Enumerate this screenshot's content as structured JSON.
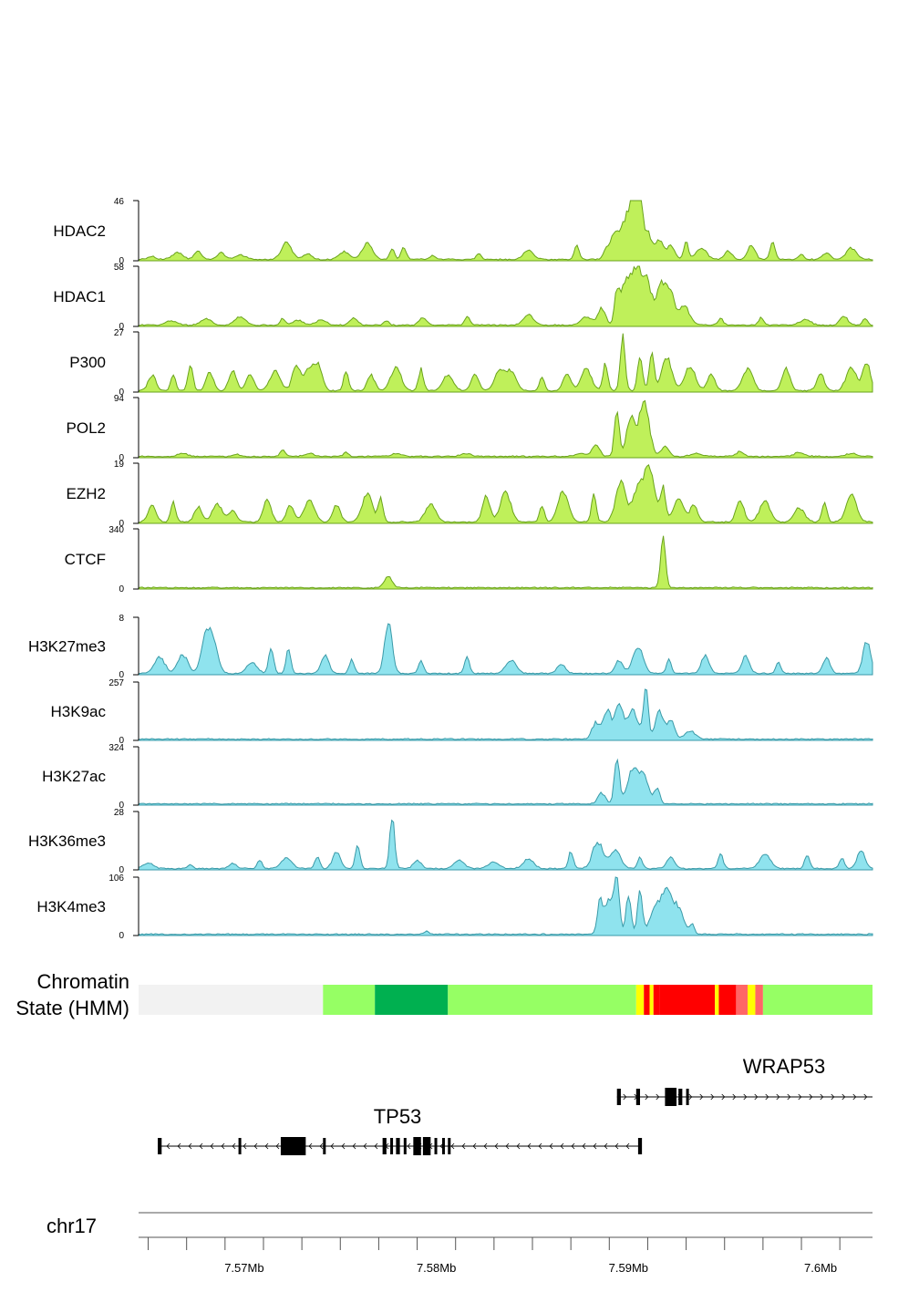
{
  "chart_data": {
    "type": "area",
    "genome": "chr17",
    "x_range": [
      7.5645,
      7.6027
    ],
    "x_unit": "Mb",
    "x_ticks": [
      {
        "value": 7.57,
        "label": "7.57Mb"
      },
      {
        "value": 7.58,
        "label": "7.58Mb"
      },
      {
        "value": 7.59,
        "label": "7.59Mb"
      },
      {
        "value": 7.6,
        "label": "7.6Mb"
      }
    ],
    "colors": {
      "protein": "#bff05a",
      "protein_line": "#6aa31c",
      "histone": "#8fe3ee",
      "histone_line": "#3a9aa8"
    },
    "tracks": [
      {
        "name": "HDAC2",
        "group": "protein",
        "ymax": "46",
        "ymin": "0",
        "peaks": [
          [
            7.5652,
            0.05
          ],
          [
            7.5665,
            0.12
          ],
          [
            7.5676,
            0.15
          ],
          [
            7.5688,
            0.12
          ],
          [
            7.5698,
            0.08
          ],
          [
            7.5722,
            0.3
          ],
          [
            7.5733,
            0.1
          ],
          [
            7.5752,
            0.14
          ],
          [
            7.5764,
            0.28
          ],
          [
            7.5777,
            0.2
          ],
          [
            7.5783,
            0.22
          ],
          [
            7.5798,
            0.08
          ],
          [
            7.5822,
            0.1
          ],
          [
            7.5848,
            0.16
          ],
          [
            7.5873,
            0.25
          ],
          [
            7.5888,
            0.12
          ],
          [
            7.5893,
            0.5
          ],
          [
            7.5898,
            0.42
          ],
          [
            7.5901,
            0.65
          ],
          [
            7.5904,
            0.7
          ],
          [
            7.5906,
            0.95
          ],
          [
            7.591,
            0.5
          ],
          [
            7.5916,
            0.35
          ],
          [
            7.5922,
            0.25
          ],
          [
            7.593,
            0.3
          ],
          [
            7.5938,
            0.2
          ],
          [
            7.5952,
            0.15
          ],
          [
            7.5964,
            0.25
          ],
          [
            7.5975,
            0.32
          ],
          [
            7.599,
            0.1
          ],
          [
            7.6003,
            0.12
          ],
          [
            7.6016,
            0.2
          ]
        ]
      },
      {
        "name": "HDAC1",
        "group": "protein",
        "ymax": "58",
        "ymin": "0",
        "peaks": [
          [
            7.5662,
            0.08
          ],
          [
            7.568,
            0.12
          ],
          [
            7.5698,
            0.15
          ],
          [
            7.572,
            0.12
          ],
          [
            7.5728,
            0.08
          ],
          [
            7.574,
            0.1
          ],
          [
            7.5757,
            0.13
          ],
          [
            7.5774,
            0.08
          ],
          [
            7.5793,
            0.12
          ],
          [
            7.5816,
            0.16
          ],
          [
            7.5848,
            0.18
          ],
          [
            7.5878,
            0.15
          ],
          [
            7.5886,
            0.3
          ],
          [
            7.5894,
            0.55
          ],
          [
            7.5899,
            0.8
          ],
          [
            7.5905,
            0.95
          ],
          [
            7.591,
            0.65
          ],
          [
            7.5917,
            0.75
          ],
          [
            7.5922,
            0.5
          ],
          [
            7.5929,
            0.35
          ],
          [
            7.5948,
            0.12
          ],
          [
            7.5969,
            0.14
          ],
          [
            7.5992,
            0.1
          ],
          [
            7.6012,
            0.16
          ],
          [
            7.6023,
            0.12
          ]
        ]
      },
      {
        "name": "P300",
        "group": "protein",
        "ymax": "27",
        "ymin": "0",
        "peaks": [
          [
            7.5652,
            0.28
          ],
          [
            7.5663,
            0.3
          ],
          [
            7.5672,
            0.45
          ],
          [
            7.5682,
            0.32
          ],
          [
            7.5694,
            0.35
          ],
          [
            7.5703,
            0.3
          ],
          [
            7.5716,
            0.35
          ],
          [
            7.5727,
            0.45
          ],
          [
            7.5734,
            0.42
          ],
          [
            7.5739,
            0.38
          ],
          [
            7.5753,
            0.35
          ],
          [
            7.5766,
            0.28
          ],
          [
            7.5779,
            0.42
          ],
          [
            7.5792,
            0.38
          ],
          [
            7.5806,
            0.28
          ],
          [
            7.582,
            0.3
          ],
          [
            7.5833,
            0.35
          ],
          [
            7.5839,
            0.32
          ],
          [
            7.5855,
            0.25
          ],
          [
            7.5868,
            0.3
          ],
          [
            7.5878,
            0.38
          ],
          [
            7.5888,
            0.48
          ],
          [
            7.5897,
            0.95
          ],
          [
            7.5906,
            0.6
          ],
          [
            7.5912,
            0.7
          ],
          [
            7.592,
            0.6
          ],
          [
            7.5932,
            0.45
          ],
          [
            7.5943,
            0.3
          ],
          [
            7.5962,
            0.38
          ],
          [
            7.5982,
            0.42
          ],
          [
            7.6,
            0.3
          ],
          [
            7.6016,
            0.42
          ],
          [
            7.6024,
            0.5
          ]
        ]
      },
      {
        "name": "POL2",
        "group": "protein",
        "ymax": "94",
        "ymin": "0",
        "peaks": [
          [
            7.5668,
            0.05
          ],
          [
            7.5696,
            0.05
          ],
          [
            7.572,
            0.12
          ],
          [
            7.5734,
            0.05
          ],
          [
            7.5753,
            0.08
          ],
          [
            7.5779,
            0.05
          ],
          [
            7.5815,
            0.05
          ],
          [
            7.5875,
            0.05
          ],
          [
            7.5883,
            0.2
          ],
          [
            7.5894,
            0.85
          ],
          [
            7.5901,
            0.7
          ],
          [
            7.5908,
            0.98
          ],
          [
            7.5919,
            0.18
          ],
          [
            7.5935,
            0.05
          ],
          [
            7.5958,
            0.08
          ],
          [
            7.5989,
            0.07
          ],
          [
            7.6016,
            0.05
          ]
        ]
      },
      {
        "name": "EZH2",
        "group": "protein",
        "ymax": "19",
        "ymin": "0",
        "peaks": [
          [
            7.5652,
            0.3
          ],
          [
            7.5663,
            0.38
          ],
          [
            7.5676,
            0.28
          ],
          [
            7.5686,
            0.32
          ],
          [
            7.5694,
            0.2
          ],
          [
            7.5712,
            0.42
          ],
          [
            7.5724,
            0.3
          ],
          [
            7.5734,
            0.38
          ],
          [
            7.5748,
            0.3
          ],
          [
            7.5764,
            0.5
          ],
          [
            7.5771,
            0.4
          ],
          [
            7.5797,
            0.32
          ],
          [
            7.5826,
            0.45
          ],
          [
            7.5836,
            0.55
          ],
          [
            7.5855,
            0.3
          ],
          [
            7.5866,
            0.55
          ],
          [
            7.5882,
            0.48
          ],
          [
            7.5896,
            0.7
          ],
          [
            7.5905,
            0.6
          ],
          [
            7.5911,
            0.95
          ],
          [
            7.5918,
            0.6
          ],
          [
            7.5926,
            0.4
          ],
          [
            7.5934,
            0.3
          ],
          [
            7.5958,
            0.4
          ],
          [
            7.5971,
            0.38
          ],
          [
            7.5989,
            0.25
          ],
          [
            7.6002,
            0.35
          ],
          [
            7.6016,
            0.5
          ]
        ]
      },
      {
        "name": "CTCF",
        "group": "protein",
        "ymax": "340",
        "ymin": "0",
        "peaks": [
          [
            7.5775,
            0.2
          ],
          [
            7.5918,
            0.95
          ]
        ]
      },
      {
        "name": "H3K27me3",
        "group": "histone",
        "ymax": "8",
        "ymin": "0",
        "peaks": [
          [
            7.5656,
            0.3
          ],
          [
            7.5668,
            0.35
          ],
          [
            7.5679,
            0.45
          ],
          [
            7.5683,
            0.75
          ],
          [
            7.5704,
            0.2
          ],
          [
            7.5714,
            0.5
          ],
          [
            7.5723,
            0.45
          ],
          [
            7.5742,
            0.35
          ],
          [
            7.5756,
            0.25
          ],
          [
            7.5775,
            0.95
          ],
          [
            7.5792,
            0.22
          ],
          [
            7.5816,
            0.3
          ],
          [
            7.5839,
            0.25
          ],
          [
            7.5865,
            0.18
          ],
          [
            7.5895,
            0.25
          ],
          [
            7.5905,
            0.5
          ],
          [
            7.5921,
            0.25
          ],
          [
            7.594,
            0.35
          ],
          [
            7.5961,
            0.32
          ],
          [
            7.5978,
            0.22
          ],
          [
            7.6003,
            0.28
          ],
          [
            7.6024,
            0.6
          ]
        ]
      },
      {
        "name": "H3K9ac",
        "group": "histone",
        "ymax": "257",
        "ymin": "0",
        "peaks": [
          [
            7.5883,
            0.3
          ],
          [
            7.5889,
            0.55
          ],
          [
            7.5895,
            0.65
          ],
          [
            7.5902,
            0.55
          ],
          [
            7.5909,
            0.95
          ],
          [
            7.5916,
            0.55
          ],
          [
            7.5922,
            0.35
          ],
          [
            7.5932,
            0.15
          ]
        ]
      },
      {
        "name": "H3K27ac",
        "group": "histone",
        "ymax": "324",
        "ymin": "0",
        "peaks": [
          [
            7.5886,
            0.2
          ],
          [
            7.5894,
            0.9
          ],
          [
            7.5902,
            0.6
          ],
          [
            7.5908,
            0.5
          ],
          [
            7.5915,
            0.3
          ]
        ]
      },
      {
        "name": "H3K36me3",
        "group": "histone",
        "ymax": "28",
        "ymin": "0",
        "peaks": [
          [
            7.565,
            0.1
          ],
          [
            7.5672,
            0.08
          ],
          [
            7.5694,
            0.1
          ],
          [
            7.5708,
            0.15
          ],
          [
            7.5722,
            0.2
          ],
          [
            7.5738,
            0.22
          ],
          [
            7.5748,
            0.3
          ],
          [
            7.5759,
            0.4
          ],
          [
            7.5777,
            0.95
          ],
          [
            7.579,
            0.15
          ],
          [
            7.5812,
            0.15
          ],
          [
            7.583,
            0.12
          ],
          [
            7.5848,
            0.18
          ],
          [
            7.587,
            0.3
          ],
          [
            7.5884,
            0.5
          ],
          [
            7.5893,
            0.35
          ],
          [
            7.5906,
            0.2
          ],
          [
            7.5922,
            0.2
          ],
          [
            7.5948,
            0.28
          ],
          [
            7.5971,
            0.28
          ],
          [
            7.5993,
            0.25
          ],
          [
            7.6011,
            0.2
          ],
          [
            7.6021,
            0.35
          ]
        ]
      },
      {
        "name": "H3K4me3",
        "group": "histone",
        "ymax": "106",
        "ymin": "0",
        "peaks": [
          [
            7.5795,
            0.05
          ],
          [
            7.5885,
            0.55
          ],
          [
            7.589,
            0.65
          ],
          [
            7.5894,
            0.95
          ],
          [
            7.59,
            0.75
          ],
          [
            7.5906,
            0.85
          ],
          [
            7.5914,
            0.5
          ],
          [
            7.592,
            0.8
          ],
          [
            7.5926,
            0.45
          ],
          [
            7.5933,
            0.18
          ]
        ]
      }
    ],
    "chromatin_state": {
      "label_line1": "Chromatin",
      "label_line2": "State (HMM)",
      "segments": [
        {
          "start": 7.5645,
          "end": 7.5741,
          "color": "#f2f2f2"
        },
        {
          "start": 7.5741,
          "end": 7.5768,
          "color": "#96ff64"
        },
        {
          "start": 7.5768,
          "end": 7.5806,
          "color": "#00b050"
        },
        {
          "start": 7.5806,
          "end": 7.5904,
          "color": "#96ff64"
        },
        {
          "start": 7.5904,
          "end": 7.5908,
          "color": "#ffff00"
        },
        {
          "start": 7.5908,
          "end": 7.5911,
          "color": "#ff0000"
        },
        {
          "start": 7.5911,
          "end": 7.5913,
          "color": "#ffff00"
        },
        {
          "start": 7.5913,
          "end": 7.5916,
          "color": "#ff0000"
        },
        {
          "start": 7.5916,
          "end": 7.5945,
          "color": "#ff0000"
        },
        {
          "start": 7.5945,
          "end": 7.5947,
          "color": "#ffff00"
        },
        {
          "start": 7.5947,
          "end": 7.5956,
          "color": "#ff0000"
        },
        {
          "start": 7.5956,
          "end": 7.5962,
          "color": "#ff6666"
        },
        {
          "start": 7.5962,
          "end": 7.5966,
          "color": "#ffff00"
        },
        {
          "start": 7.5966,
          "end": 7.597,
          "color": "#ff6666"
        },
        {
          "start": 7.597,
          "end": 7.6027,
          "color": "#96ff64"
        }
      ]
    },
    "genes": [
      {
        "name": "WRAP53",
        "strand": "+",
        "start": 7.5894,
        "end": 7.6027,
        "exons": [
          [
            7.5894,
            7.5896
          ],
          [
            7.5904,
            7.5906
          ],
          [
            7.5919,
            7.5925
          ],
          [
            7.5926,
            7.5928
          ],
          [
            7.593,
            7.5931
          ]
        ]
      },
      {
        "name": "TP53",
        "strand": "-",
        "start": 7.5655,
        "end": 7.5906,
        "exons": [
          [
            7.5655,
            7.5657
          ],
          [
            7.5697,
            7.5698
          ],
          [
            7.5719,
            7.5732
          ],
          [
            7.5741,
            7.5742
          ],
          [
            7.5772,
            7.5774
          ],
          [
            7.5776,
            7.5777
          ],
          [
            7.5779,
            7.5781
          ],
          [
            7.5783,
            7.5784
          ],
          [
            7.5788,
            7.5792
          ],
          [
            7.5793,
            7.5797
          ],
          [
            7.5799,
            7.58
          ],
          [
            7.5803,
            7.5804
          ],
          [
            7.5806,
            7.5807
          ],
          [
            7.5905,
            7.5907
          ]
        ]
      }
    ]
  }
}
